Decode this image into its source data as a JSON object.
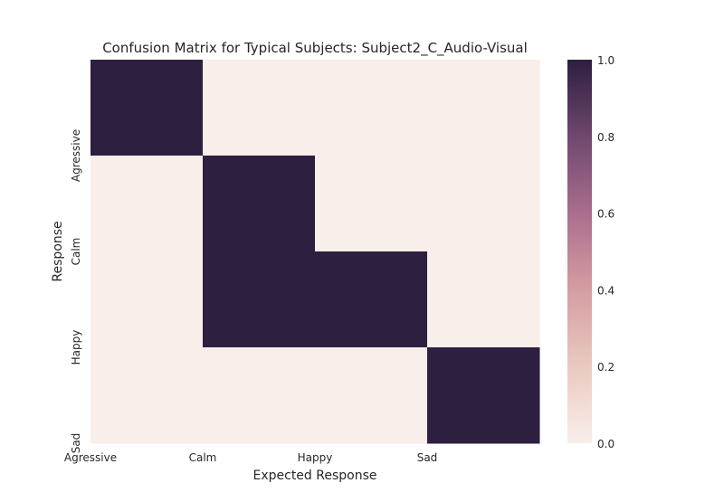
{
  "chart_data": {
    "type": "heatmap",
    "title": "Confusion Matrix for Typical Subjects: Subject2_C_Audio-Visual",
    "xlabel": "Expected Response",
    "ylabel": "Response",
    "x_tick_labels": [
      "Agressive",
      "Calm",
      "Happy",
      "Sad"
    ],
    "y_tick_labels": [
      "Agressive",
      "Calm",
      "Happy",
      "Sad"
    ],
    "n_cols": 4,
    "n_rows": 4,
    "values": [
      [
        1,
        0,
        0,
        0
      ],
      [
        0,
        1,
        0,
        0
      ],
      [
        0,
        1,
        1,
        0
      ],
      [
        0,
        0,
        0,
        1
      ]
    ],
    "colorbar": {
      "min": 0.0,
      "max": 1.0,
      "ticks": [
        "0.0",
        "0.2",
        "0.4",
        "0.6",
        "0.8",
        "1.0"
      ],
      "color_low": "#f8efea",
      "color_high": "#2d1f3f"
    },
    "grid": false
  }
}
